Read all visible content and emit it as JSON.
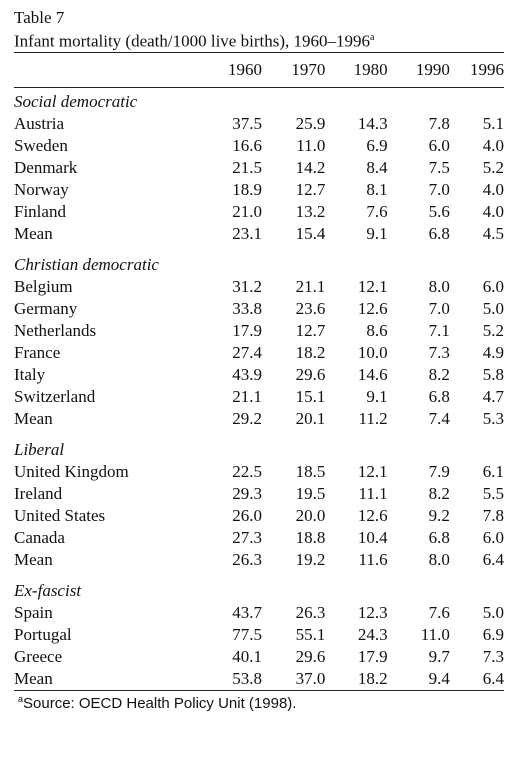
{
  "table_label": "Table 7",
  "caption": "Infant mortality (death/1000 live births), 1960–1996",
  "caption_note": "a",
  "years": [
    "1960",
    "1970",
    "1980",
    "1990",
    "1996"
  ],
  "groups": [
    {
      "name": "Social democratic",
      "rows": [
        [
          "Austria",
          "37.5",
          "25.9",
          "14.3",
          "7.8",
          "5.1"
        ],
        [
          "Sweden",
          "16.6",
          "11.0",
          "6.9",
          "6.0",
          "4.0"
        ],
        [
          "Denmark",
          "21.5",
          "14.2",
          "8.4",
          "7.5",
          "5.2"
        ],
        [
          "Norway",
          "18.9",
          "12.7",
          "8.1",
          "7.0",
          "4.0"
        ],
        [
          "Finland",
          "21.0",
          "13.2",
          "7.6",
          "5.6",
          "4.0"
        ],
        [
          "Mean",
          "23.1",
          "15.4",
          "9.1",
          "6.8",
          "4.5"
        ]
      ]
    },
    {
      "name": "Christian democratic",
      "rows": [
        [
          "Belgium",
          "31.2",
          "21.1",
          "12.1",
          "8.0",
          "6.0"
        ],
        [
          "Germany",
          "33.8",
          "23.6",
          "12.6",
          "7.0",
          "5.0"
        ],
        [
          "Netherlands",
          "17.9",
          "12.7",
          "8.6",
          "7.1",
          "5.2"
        ],
        [
          "France",
          "27.4",
          "18.2",
          "10.0",
          "7.3",
          "4.9"
        ],
        [
          "Italy",
          "43.9",
          "29.6",
          "14.6",
          "8.2",
          "5.8"
        ],
        [
          "Switzerland",
          "21.1",
          "15.1",
          "9.1",
          "6.8",
          "4.7"
        ],
        [
          "Mean",
          "29.2",
          "20.1",
          "11.2",
          "7.4",
          "5.3"
        ]
      ]
    },
    {
      "name": "Liberal",
      "rows": [
        [
          "United Kingdom",
          "22.5",
          "18.5",
          "12.1",
          "7.9",
          "6.1"
        ],
        [
          "Ireland",
          "29.3",
          "19.5",
          "11.1",
          "8.2",
          "5.5"
        ],
        [
          "United States",
          "26.0",
          "20.0",
          "12.6",
          "9.2",
          "7.8"
        ],
        [
          "Canada",
          "27.3",
          "18.8",
          "10.4",
          "6.8",
          "6.0"
        ],
        [
          "Mean",
          "26.3",
          "19.2",
          "11.6",
          "8.0",
          "6.4"
        ]
      ]
    },
    {
      "name": "Ex-fascist",
      "rows": [
        [
          "Spain",
          "43.7",
          "26.3",
          "12.3",
          "7.6",
          "5.0"
        ],
        [
          "Portugal",
          "77.5",
          "55.1",
          "24.3",
          "11.0",
          "6.9"
        ],
        [
          "Greece",
          "40.1",
          "29.6",
          "17.9",
          "9.7",
          "7.3"
        ],
        [
          "Mean",
          "53.8",
          "37.0",
          "18.2",
          "9.4",
          "6.4"
        ]
      ]
    }
  ],
  "footnote_mark": "a",
  "footnote": "Source: OECD Health Policy Unit (1998)."
}
